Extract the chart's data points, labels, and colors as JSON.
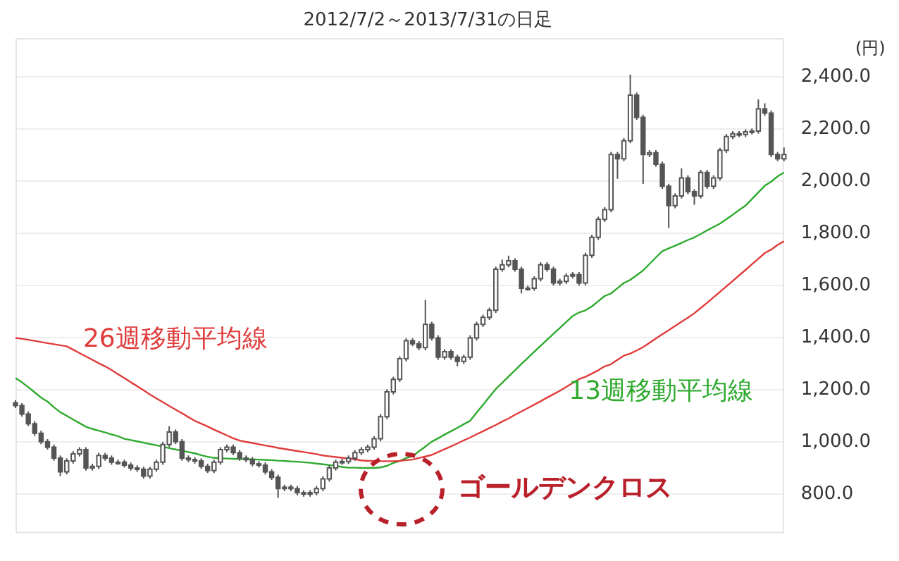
{
  "chart_data": {
    "type": "candlestick",
    "title": "2012/7/2～2013/7/31の日足",
    "ylabel": "(円)",
    "color": "#555555",
    "categories": [
      null,
      null,
      null,
      null,
      null,
      null,
      null,
      null,
      null,
      null,
      null,
      null,
      null,
      null,
      null,
      null,
      null,
      null,
      null,
      null,
      null,
      null,
      null,
      null,
      null,
      null,
      null,
      null,
      null,
      null,
      null,
      null,
      null,
      null,
      null,
      null,
      null,
      null,
      null,
      null,
      null,
      null,
      null,
      null,
      null,
      null,
      null,
      null,
      null,
      null,
      null,
      null,
      null,
      null,
      null,
      null,
      null,
      null,
      null,
      null,
      null,
      null,
      null,
      null,
      null,
      null,
      null,
      null,
      null,
      null,
      null,
      null,
      null,
      null,
      null,
      null,
      null,
      null,
      null,
      null,
      null,
      null,
      null,
      null,
      null,
      null,
      null,
      null,
      null,
      null,
      null,
      null,
      null,
      null,
      null,
      null,
      null,
      null,
      null,
      null,
      null,
      null,
      null,
      null,
      null,
      null,
      null,
      null,
      null,
      null,
      null,
      null,
      null,
      null,
      null,
      null,
      null,
      null,
      null,
      null,
      null
    ],
    "ohlc": [
      [
        1150,
        1160,
        1130,
        1139
      ],
      [
        1139,
        1149,
        1097,
        1107
      ],
      [
        1107,
        1117,
        1060,
        1070
      ],
      [
        1070,
        1080,
        1023,
        1033
      ],
      [
        1033,
        1043,
        991,
        1001
      ],
      [
        1001,
        1011,
        970,
        980
      ],
      [
        980,
        990,
        928,
        938
      ],
      [
        938,
        948,
        869,
        885
      ],
      [
        885,
        937,
        875,
        927
      ],
      [
        927,
        964,
        917,
        954
      ],
      [
        954,
        980,
        944,
        970
      ],
      [
        970,
        980,
        890,
        900
      ],
      [
        900,
        916,
        890,
        906
      ],
      [
        906,
        958,
        896,
        948
      ],
      [
        948,
        958,
        928,
        938
      ],
      [
        938,
        948,
        912,
        922
      ],
      [
        922,
        932,
        912,
        922
      ],
      [
        922,
        932,
        901,
        911
      ],
      [
        911,
        921,
        890,
        900
      ],
      [
        900,
        910,
        885,
        895
      ],
      [
        895,
        905,
        859,
        869
      ],
      [
        869,
        905,
        859,
        895
      ],
      [
        895,
        932,
        885,
        922
      ],
      [
        922,
        1000,
        912,
        990
      ],
      [
        990,
        1060,
        980,
        1038
      ],
      [
        1038,
        1048,
        991,
        1001
      ],
      [
        1001,
        1011,
        928,
        938
      ],
      [
        938,
        948,
        922,
        932
      ],
      [
        932,
        942,
        917,
        927
      ],
      [
        927,
        937,
        896,
        906
      ],
      [
        906,
        916,
        880,
        890
      ],
      [
        890,
        932,
        880,
        922
      ],
      [
        922,
        980,
        912,
        970
      ],
      [
        970,
        990,
        960,
        980
      ],
      [
        980,
        990,
        949,
        959
      ],
      [
        959,
        969,
        928,
        938
      ],
      [
        938,
        948,
        922,
        932
      ],
      [
        932,
        942,
        906,
        916
      ],
      [
        916,
        926,
        901,
        911
      ],
      [
        911,
        921,
        875,
        885
      ],
      [
        885,
        895,
        854,
        864
      ],
      [
        864,
        874,
        785,
        821
      ],
      [
        821,
        836,
        811,
        826
      ],
      [
        826,
        836,
        811,
        821
      ],
      [
        821,
        831,
        795,
        805
      ],
      [
        805,
        815,
        790,
        800
      ],
      [
        800,
        815,
        790,
        805
      ],
      [
        805,
        831,
        795,
        821
      ],
      [
        821,
        868,
        811,
        858
      ],
      [
        858,
        910,
        848,
        900
      ],
      [
        900,
        932,
        890,
        922
      ],
      [
        922,
        935,
        912,
        925
      ],
      [
        925,
        948,
        915,
        938
      ],
      [
        938,
        969,
        928,
        959
      ],
      [
        959,
        980,
        949,
        970
      ],
      [
        970,
        990,
        960,
        980
      ],
      [
        980,
        1022,
        970,
        1012
      ],
      [
        1012,
        1107,
        1002,
        1097
      ],
      [
        1097,
        1202,
        1087,
        1192
      ],
      [
        1192,
        1250,
        1182,
        1240
      ],
      [
        1240,
        1329,
        1230,
        1319
      ],
      [
        1319,
        1398,
        1309,
        1388
      ],
      [
        1388,
        1398,
        1367,
        1377
      ],
      [
        1377,
        1387,
        1352,
        1362
      ],
      [
        1362,
        1545,
        1352,
        1451
      ],
      [
        1451,
        1461,
        1389,
        1399
      ],
      [
        1399,
        1409,
        1315,
        1325
      ],
      [
        1325,
        1356,
        1315,
        1346
      ],
      [
        1346,
        1356,
        1315,
        1325
      ],
      [
        1325,
        1335,
        1290,
        1309
      ],
      [
        1309,
        1335,
        1299,
        1325
      ],
      [
        1325,
        1409,
        1315,
        1399
      ],
      [
        1399,
        1461,
        1389,
        1451
      ],
      [
        1451,
        1488,
        1441,
        1478
      ],
      [
        1478,
        1515,
        1468,
        1505
      ],
      [
        1505,
        1673,
        1495,
        1663
      ],
      [
        1663,
        1700,
        1653,
        1680
      ],
      [
        1680,
        1715,
        1670,
        1695
      ],
      [
        1695,
        1705,
        1653,
        1663
      ],
      [
        1663,
        1673,
        1570,
        1590
      ],
      [
        1590,
        1600,
        1580,
        1590
      ],
      [
        1590,
        1636,
        1580,
        1626
      ],
      [
        1626,
        1690,
        1616,
        1680
      ],
      [
        1680,
        1690,
        1653,
        1663
      ],
      [
        1663,
        1673,
        1600,
        1610
      ],
      [
        1610,
        1626,
        1600,
        1616
      ],
      [
        1616,
        1647,
        1606,
        1637
      ],
      [
        1637,
        1652,
        1627,
        1642
      ],
      [
        1642,
        1652,
        1600,
        1610
      ],
      [
        1610,
        1726,
        1600,
        1716
      ],
      [
        1716,
        1795,
        1706,
        1785
      ],
      [
        1785,
        1864,
        1775,
        1854
      ],
      [
        1854,
        1901,
        1844,
        1891
      ],
      [
        1891,
        2113,
        1881,
        2103
      ],
      [
        2103,
        2113,
        2010,
        2087
      ],
      [
        2087,
        2166,
        2077,
        2156
      ],
      [
        2156,
        2410,
        2146,
        2331
      ],
      [
        2331,
        2341,
        2236,
        2246
      ],
      [
        2246,
        2256,
        1990,
        2103
      ],
      [
        2103,
        2120,
        2093,
        2110
      ],
      [
        2110,
        2120,
        2056,
        2066
      ],
      [
        2066,
        2076,
        1971,
        1981
      ],
      [
        1981,
        1991,
        1820,
        1907
      ],
      [
        1907,
        1954,
        1897,
        1944
      ],
      [
        1944,
        2050,
        1934,
        2013
      ],
      [
        2013,
        2023,
        1950,
        1960
      ],
      [
        1960,
        1970,
        1910,
        1944
      ],
      [
        1944,
        2044,
        1934,
        2034
      ],
      [
        2034,
        2044,
        1971,
        1981
      ],
      [
        1981,
        2023,
        1971,
        2013
      ],
      [
        2013,
        2129,
        2003,
        2119
      ],
      [
        2119,
        2182,
        2109,
        2172
      ],
      [
        2172,
        2193,
        2162,
        2183
      ],
      [
        2183,
        2193,
        2170,
        2180
      ],
      [
        2180,
        2200,
        2170,
        2190
      ],
      [
        2190,
        2203,
        2180,
        2193
      ],
      [
        2193,
        2315,
        2183,
        2278
      ],
      [
        2278,
        2300,
        2252,
        2262
      ],
      [
        2262,
        2272,
        2093,
        2103
      ],
      [
        2103,
        2113,
        2077,
        2087
      ],
      [
        2087,
        2130,
        2077,
        2103
      ]
    ],
    "series": [
      {
        "name": "26週移動平均線",
        "type": "line",
        "color": "#e03c3c",
        "values": [
          1399,
          1396,
          1392,
          1388,
          1383,
          1379,
          1375,
          1371,
          1367,
          1354,
          1341,
          1328,
          1315,
          1302,
          1290,
          1276,
          1260,
          1245,
          1229,
          1214,
          1198,
          1182,
          1167,
          1153,
          1138,
          1124,
          1110,
          1095,
          1081,
          1070,
          1059,
          1047,
          1036,
          1025,
          1014,
          1005,
          1000,
          996,
          991,
          986,
          982,
          977,
          973,
          969,
          965,
          961,
          957,
          953,
          948,
          945,
          942,
          939,
          936,
          933,
          929,
          927,
          927,
          926,
          926,
          926,
          927,
          930,
          932,
          938,
          944,
          950,
          961,
          972,
          983,
          994,
          1006,
          1017,
          1029,
          1041,
          1053,
          1065,
          1078,
          1090,
          1104,
          1117,
          1130,
          1143,
          1156,
          1170,
          1183,
          1196,
          1211,
          1226,
          1241,
          1250,
          1262,
          1275,
          1290,
          1298,
          1315,
          1331,
          1339,
          1351,
          1364,
          1380,
          1397,
          1413,
          1429,
          1445,
          1461,
          1477,
          1494,
          1514,
          1534,
          1555,
          1576,
          1597,
          1618,
          1639,
          1660,
          1682,
          1703,
          1725,
          1738,
          1756,
          1770
        ]
      },
      {
        "name": "13週移動平均線",
        "type": "line",
        "color": "#2faa2f",
        "values": [
          1245,
          1229,
          1210,
          1190,
          1170,
          1155,
          1133,
          1114,
          1100,
          1086,
          1072,
          1058,
          1050,
          1043,
          1036,
          1029,
          1022,
          1012,
          1007,
          1002,
          997,
          992,
          987,
          982,
          976,
          971,
          966,
          961,
          956,
          949,
          943,
          939,
          937,
          936,
          935,
          934,
          934,
          933,
          932,
          931,
          930,
          928,
          927,
          925,
          924,
          922,
          920,
          917,
          914,
          911,
          908,
          904,
          901,
          901,
          900,
          900,
          900,
          902,
          908,
          919,
          927,
          938,
          945,
          964,
          982,
          1001,
          1014,
          1028,
          1041,
          1054,
          1068,
          1081,
          1112,
          1142,
          1173,
          1203,
          1227,
          1251,
          1275,
          1299,
          1322,
          1346,
          1369,
          1392,
          1415,
          1437,
          1460,
          1483,
          1497,
          1505,
          1520,
          1540,
          1560,
          1570,
          1590,
          1610,
          1622,
          1640,
          1658,
          1683,
          1708,
          1732,
          1743,
          1753,
          1764,
          1775,
          1785,
          1798,
          1812,
          1825,
          1838,
          1855,
          1872,
          1890,
          1907,
          1932,
          1958,
          1983,
          1999,
          2019,
          2034
        ]
      }
    ],
    "annotations": [
      "ゴールデンクロス"
    ],
    "ylim": [
      650,
      2550
    ],
    "yticks": [
      {
        "value": 800,
        "label": "800.0"
      },
      {
        "value": 1000,
        "label": "1,000.0"
      },
      {
        "value": 1200,
        "label": "1,200.0"
      },
      {
        "value": 1400,
        "label": "1,400.0"
      },
      {
        "value": 1600,
        "label": "1,600.0"
      },
      {
        "value": 1800,
        "label": "1,800.0"
      },
      {
        "value": 2000,
        "label": "2,000.0"
      },
      {
        "value": 2200,
        "label": "2,200.0"
      },
      {
        "value": 2400,
        "label": "2,400.0"
      }
    ],
    "grid": "y",
    "legend": false
  }
}
